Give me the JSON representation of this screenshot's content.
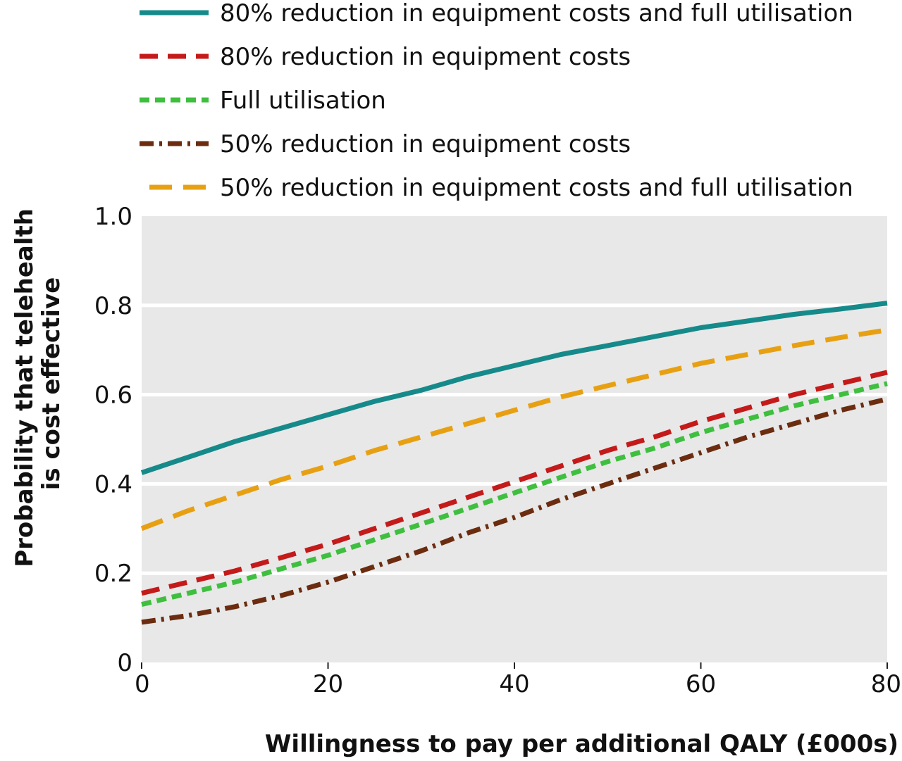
{
  "chart_data": {
    "type": "line",
    "title": "",
    "xlabel": "Willingness to pay per additional QALY (£000s)",
    "ylabel_lines": [
      "Probability that telehealth",
      "is cost effective"
    ],
    "xlim": [
      0,
      80
    ],
    "ylim": [
      0,
      1.0
    ],
    "x_ticks": [
      0,
      20,
      40,
      60,
      80
    ],
    "x_tick_labels": [
      "0",
      "20",
      "40",
      "60",
      "80"
    ],
    "y_ticks": [
      0,
      0.2,
      0.4,
      0.6,
      0.8,
      1.0
    ],
    "y_tick_labels": [
      "0",
      "0.2",
      "0.4",
      "0.6",
      "0.8",
      "1.0"
    ],
    "grid": "horizontal",
    "plot_background": "#e8e8e8",
    "legend_position": "top",
    "x": [
      0,
      5,
      10,
      15,
      20,
      25,
      30,
      35,
      40,
      45,
      50,
      55,
      60,
      65,
      70,
      75,
      80
    ],
    "series": [
      {
        "name": "80% reduction in equipment costs and full utilisation",
        "color": "#168a8a",
        "style": "solid",
        "values": [
          0.425,
          0.46,
          0.495,
          0.525,
          0.555,
          0.585,
          0.61,
          0.64,
          0.665,
          0.69,
          0.71,
          0.73,
          0.75,
          0.765,
          0.78,
          0.792,
          0.805
        ]
      },
      {
        "name": "80% reduction in equipment costs",
        "color": "#c41a1a",
        "style": "dashed",
        "values": [
          0.155,
          0.18,
          0.205,
          0.235,
          0.265,
          0.3,
          0.335,
          0.37,
          0.405,
          0.44,
          0.475,
          0.505,
          0.54,
          0.57,
          0.6,
          0.625,
          0.65
        ]
      },
      {
        "name": "Full utilisation",
        "color": "#3fbf3f",
        "style": "short-dashed",
        "values": [
          0.13,
          0.155,
          0.18,
          0.21,
          0.24,
          0.275,
          0.31,
          0.345,
          0.38,
          0.415,
          0.45,
          0.48,
          0.515,
          0.545,
          0.575,
          0.6,
          0.625
        ]
      },
      {
        "name": "50% reduction in equipment costs",
        "color": "#6b2c10",
        "style": "dash-dot",
        "values": [
          0.09,
          0.105,
          0.125,
          0.15,
          0.18,
          0.215,
          0.25,
          0.29,
          0.325,
          0.365,
          0.4,
          0.435,
          0.47,
          0.505,
          0.535,
          0.565,
          0.59
        ]
      },
      {
        "name": "50% reduction in equipment costs and full utilisation",
        "color": "#e8a013",
        "style": "long-dashed",
        "values": [
          0.3,
          0.34,
          0.375,
          0.41,
          0.44,
          0.475,
          0.505,
          0.535,
          0.565,
          0.595,
          0.62,
          0.645,
          0.67,
          0.69,
          0.71,
          0.728,
          0.745
        ]
      }
    ]
  }
}
